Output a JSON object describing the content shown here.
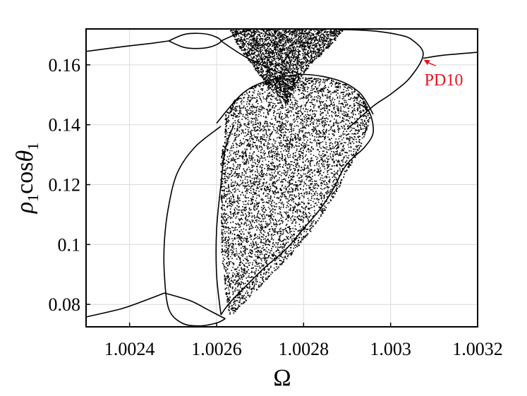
{
  "chart_data": {
    "type": "scatter",
    "title": "",
    "xlabel": "Ω",
    "ylabel_parts": {
      "base": "ρ",
      "sub1": "1",
      "mid": "cos",
      "theta": "θ",
      "sub2": "1"
    },
    "xlim": [
      1.0023,
      1.0032
    ],
    "ylim": [
      0.0725,
      0.172
    ],
    "x_ticks": [
      1.0024,
      1.0026,
      1.0028,
      1.003,
      1.0032
    ],
    "x_tick_labels": [
      "1.0024",
      "1.0026",
      "1.0028",
      "1.003",
      "1.0032"
    ],
    "y_ticks": [
      0.08,
      0.1,
      0.12,
      0.14,
      0.16
    ],
    "y_tick_labels": [
      "0.08",
      "0.1",
      "0.12",
      "0.14",
      "0.16"
    ],
    "grid": true,
    "series": [
      {
        "name": "",
        "style": "curve",
        "points": [
          [
            1.0023,
            0.1645
          ],
          [
            1.00238,
            0.166
          ],
          [
            1.00245,
            0.1672
          ],
          [
            1.00249,
            0.168
          ]
        ]
      },
      {
        "name": "",
        "style": "curve",
        "points": [
          [
            1.00249,
            0.168
          ],
          [
            1.00253,
            0.1703
          ],
          [
            1.00258,
            0.1702
          ],
          [
            1.00261,
            0.168
          ],
          [
            1.00258,
            0.1658
          ],
          [
            1.00253,
            0.1657
          ],
          [
            1.00249,
            0.168
          ]
        ]
      },
      {
        "name": "",
        "style": "curve",
        "points": [
          [
            1.00261,
            0.168
          ],
          [
            1.00265,
            0.1705
          ],
          [
            1.00268,
            0.1718
          ]
        ]
      },
      {
        "name": "",
        "style": "curve",
        "points": [
          [
            1.00261,
            0.168
          ],
          [
            1.00266,
            0.1632
          ],
          [
            1.00272,
            0.1588
          ],
          [
            1.00276,
            0.1565
          ]
        ]
      },
      {
        "name": "",
        "style": "curve",
        "points": [
          [
            1.00288,
            0.1718
          ],
          [
            1.00293,
            0.1716
          ],
          [
            1.00297,
            0.1712
          ],
          [
            1.00302,
            0.17
          ],
          [
            1.00305,
            0.1683
          ],
          [
            1.003075,
            0.1635
          ],
          [
            1.003045,
            0.1558
          ],
          [
            1.003,
            0.1502
          ],
          [
            1.00296,
            0.1462
          ],
          [
            1.0029,
            0.1385
          ]
        ]
      },
      {
        "name": "",
        "style": "curve",
        "points": [
          [
            1.003075,
            0.1622
          ],
          [
            1.00312,
            0.1632
          ],
          [
            1.0032,
            0.1642
          ]
        ]
      },
      {
        "name": "",
        "style": "curve",
        "points": [
          [
            1.00261,
            0.1395
          ],
          [
            1.00255,
            0.1325
          ],
          [
            1.00251,
            0.124
          ],
          [
            1.00249,
            0.113
          ],
          [
            1.00248,
            0.101
          ],
          [
            1.00248,
            0.09
          ],
          [
            1.00249,
            0.0785
          ],
          [
            1.00252,
            0.0738
          ],
          [
            1.00256,
            0.0728
          ],
          [
            1.0026,
            0.0738
          ],
          [
            1.00262,
            0.0752
          ]
        ]
      },
      {
        "name": "",
        "style": "curve",
        "points": [
          [
            1.0023,
            0.0758
          ],
          [
            1.00238,
            0.0785
          ],
          [
            1.00243,
            0.081
          ],
          [
            1.00248,
            0.0838
          ]
        ]
      },
      {
        "name": "",
        "style": "curve",
        "points": [
          [
            1.00248,
            0.0838
          ],
          [
            1.00254,
            0.0812
          ],
          [
            1.00258,
            0.0782
          ],
          [
            1.00262,
            0.0752
          ]
        ]
      },
      {
        "name": "",
        "style": "curve",
        "points": [
          [
            1.0026,
            0.1405
          ],
          [
            1.00266,
            0.1505
          ],
          [
            1.00272,
            0.1548
          ],
          [
            1.0028,
            0.1568
          ],
          [
            1.00288,
            0.1548
          ],
          [
            1.00293,
            0.1505
          ],
          [
            1.00296,
            0.1435
          ]
        ]
      },
      {
        "name": "",
        "style": "curve",
        "points": [
          [
            1.00292,
            0.1475
          ],
          [
            1.00295,
            0.1445
          ],
          [
            1.00296,
            0.1375
          ],
          [
            1.00294,
            0.1325
          ],
          [
            1.00291,
            0.1285
          ],
          [
            1.00289,
            0.1248
          ],
          [
            1.00287,
            0.119
          ],
          [
            1.00284,
            0.1122
          ],
          [
            1.0028,
            0.1053
          ],
          [
            1.00276,
            0.0985
          ],
          [
            1.00271,
            0.0922
          ],
          [
            1.00267,
            0.0865
          ],
          [
            1.00263,
            0.0805
          ],
          [
            1.00261,
            0.0765
          ]
        ]
      },
      {
        "name": "",
        "style": "curve",
        "points": [
          [
            1.00264,
            0.14
          ],
          [
            1.00262,
            0.132
          ],
          [
            1.00261,
            0.12
          ],
          [
            1.0026,
            0.105
          ],
          [
            1.0026,
            0.09
          ],
          [
            1.00261,
            0.0765
          ]
        ]
      }
    ],
    "chaotic_regions": [
      {
        "style": "scatter",
        "outline": [
          [
            1.00262,
            0.143
          ],
          [
            1.00264,
            0.148
          ],
          [
            1.00268,
            0.1528
          ],
          [
            1.00274,
            0.1552
          ],
          [
            1.0028,
            0.156
          ],
          [
            1.00286,
            0.1552
          ],
          [
            1.00291,
            0.1525
          ],
          [
            1.00294,
            0.148
          ],
          [
            1.00295,
            0.142
          ],
          [
            1.00293,
            0.133
          ],
          [
            1.0029,
            0.1255
          ],
          [
            1.00287,
            0.117
          ],
          [
            1.00283,
            0.108
          ],
          [
            1.00278,
            0.0985
          ],
          [
            1.00272,
            0.0895
          ],
          [
            1.00267,
            0.082
          ],
          [
            1.00263,
            0.0765
          ],
          [
            1.00262,
            0.085
          ],
          [
            1.00261,
            0.1
          ],
          [
            1.00261,
            0.115
          ],
          [
            1.00261,
            0.128
          ],
          [
            1.00262,
            0.138
          ]
        ]
      },
      {
        "style": "scatter",
        "outline": [
          [
            1.00263,
            0.172
          ],
          [
            1.00289,
            0.172
          ],
          [
            1.00286,
            0.1668
          ],
          [
            1.00282,
            0.1612
          ],
          [
            1.00279,
            0.1562
          ],
          [
            1.00276,
            0.1478
          ],
          [
            1.00272,
            0.1528
          ],
          [
            1.00268,
            0.1602
          ],
          [
            1.00265,
            0.1665
          ]
        ]
      }
    ],
    "annotations": [
      {
        "text": "PD10",
        "color": "#e8151c",
        "x": 1.00312,
        "y": 0.1545,
        "arrow_to": [
          1.003075,
          0.1622
        ]
      }
    ]
  }
}
